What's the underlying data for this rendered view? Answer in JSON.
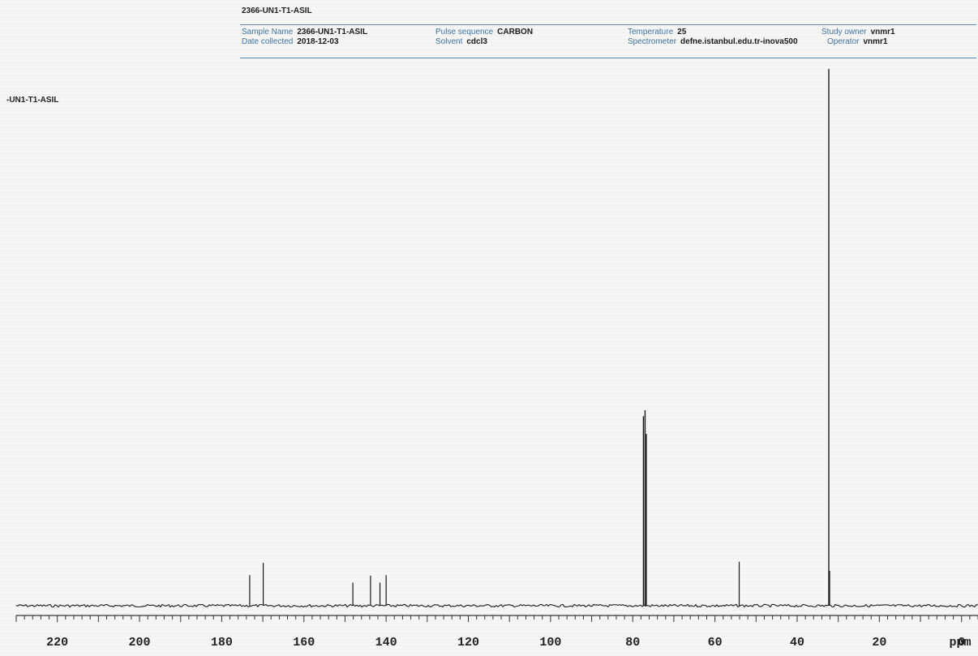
{
  "header": {
    "title": "2366-UN1-T1-ASIL",
    "fields": [
      {
        "label": "Sample Name",
        "value": "2366-UN1-T1-ASIL"
      },
      {
        "label": "Date collected",
        "value": "2018-12-03"
      },
      {
        "label": "Pulse sequence",
        "value": "CARBON"
      },
      {
        "label": "Solvent",
        "value": "cdcl3"
      },
      {
        "label": "Temperature",
        "value": "25"
      },
      {
        "label": "Spectrometer",
        "value": "defne.istanbul.edu.tr-inova500"
      },
      {
        "label": "Study owner",
        "value": "vnmr1"
      },
      {
        "label": "Operator",
        "value": "vnmr1"
      }
    ]
  },
  "side_label": "-UN1-T1-ASIL",
  "chart_data": {
    "type": "line",
    "xlabel": "ppm",
    "xlim": [
      230,
      -4
    ],
    "x_reversed": true,
    "ylim": [
      0,
      100
    ],
    "grid": false,
    "ticks": [
      220,
      200,
      180,
      160,
      140,
      120,
      100,
      80,
      60,
      40,
      20,
      0
    ],
    "tick_labels": [
      "220",
      "200",
      "180",
      "160",
      "140",
      "120",
      "100",
      "80",
      "60",
      "40",
      "20",
      "0"
    ],
    "minor_tick_step": 2,
    "peaks": [
      {
        "ppm": 173.2,
        "height": 5.7
      },
      {
        "ppm": 169.9,
        "height": 8.0
      },
      {
        "ppm": 148.1,
        "height": 4.3
      },
      {
        "ppm": 143.8,
        "height": 5.6
      },
      {
        "ppm": 141.5,
        "height": 4.3
      },
      {
        "ppm": 140.0,
        "height": 5.7
      },
      {
        "ppm": 77.4,
        "height": 35.3
      },
      {
        "ppm": 77.0,
        "height": 36.4
      },
      {
        "ppm": 76.7,
        "height": 32.0
      },
      {
        "ppm": 54.1,
        "height": 8.2
      },
      {
        "ppm": 32.3,
        "height": 100
      },
      {
        "ppm": 32.1,
        "height": 6.5
      }
    ],
    "line_color": "#1a1a1a"
  }
}
